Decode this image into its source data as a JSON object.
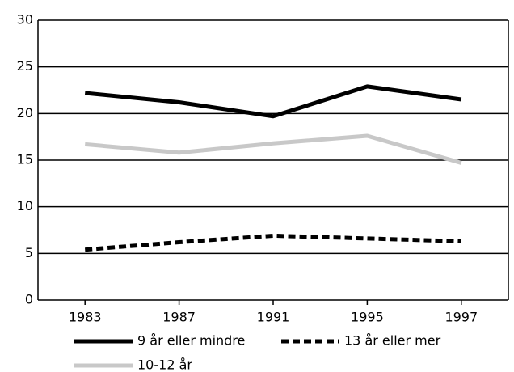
{
  "chart_data": {
    "type": "line",
    "categories": [
      "1983",
      "1987",
      "1991",
      "1995",
      "1997"
    ],
    "series": [
      {
        "name": "9 år eller mindre",
        "color": "#000000",
        "dash": false,
        "values": [
          22.2,
          21.2,
          19.7,
          22.9,
          21.5
        ]
      },
      {
        "name": "13 år eller mer",
        "color": "#000000",
        "dash": true,
        "values": [
          5.4,
          6.2,
          6.9,
          6.6,
          6.3
        ]
      },
      {
        "name": "10-12 år",
        "color": "#c8c8c8",
        "dash": false,
        "values": [
          16.7,
          15.8,
          16.8,
          17.6,
          14.7
        ]
      }
    ],
    "ylim": [
      0,
      30
    ],
    "yticks": [
      0,
      5,
      10,
      15,
      20,
      25,
      30
    ],
    "grid": true
  }
}
